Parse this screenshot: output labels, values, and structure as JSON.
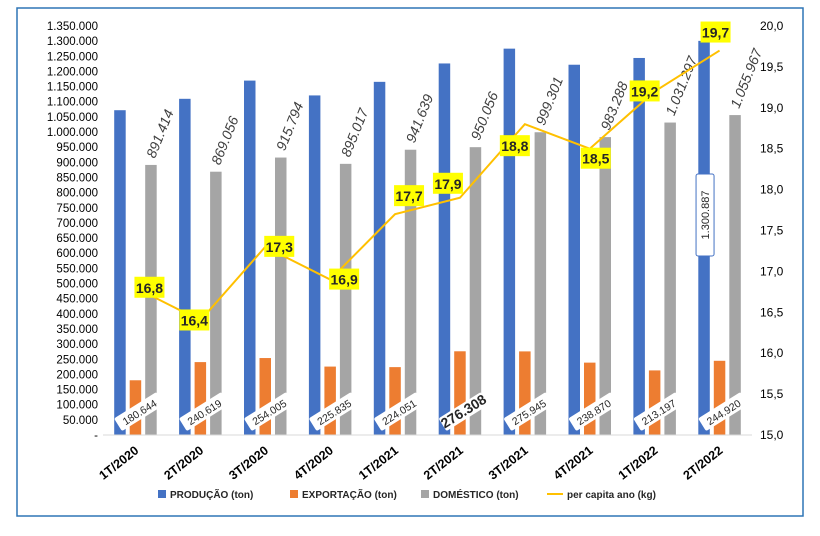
{
  "chart_data": {
    "type": "bar",
    "categories": [
      "1T/2020",
      "2T/2020",
      "3T/2020",
      "4T/2020",
      "1T/2021",
      "2T/2021",
      "3T/2021",
      "4T/2021",
      "1T/2022",
      "2T/2022"
    ],
    "series": [
      {
        "name": "PRODUÇÃO (ton)",
        "color": "#4472C4",
        "axis": "left",
        "values": [
          1072058,
          1109675,
          1169799,
          1120852,
          1165690,
          1226364,
          1275246,
          1222158,
          1244494,
          1300887
        ]
      },
      {
        "name": "EXPORTAÇÃO (ton)",
        "color": "#ED7D31",
        "axis": "left",
        "values": [
          180644,
          240619,
          254005,
          225835,
          224051,
          276308,
          275945,
          238870,
          213197,
          244920
        ]
      },
      {
        "name": "DOMÉSTICO (ton)",
        "color": "#A5A5A5",
        "axis": "left",
        "values": [
          891414,
          869056,
          915794,
          895017,
          941639,
          950056,
          999301,
          983288,
          1031297,
          1055967
        ]
      },
      {
        "name": "per capita ano (kg)",
        "color": "#FFC000",
        "axis": "right",
        "type": "line",
        "values": [
          16.8,
          16.4,
          17.3,
          16.9,
          17.7,
          17.9,
          18.8,
          18.5,
          19.2,
          19.7
        ]
      }
    ],
    "data_labels": {
      "producao": [
        "",
        "",
        "",
        "",
        "",
        "",
        "",
        "",
        "",
        "1.300.887"
      ],
      "exportacao": [
        "180.644",
        "240.619",
        "254.005",
        "225.835",
        "224.051",
        "276.308",
        "275.945",
        "238.870",
        "213.197",
        "244.920"
      ],
      "domestico": [
        "891.414",
        "869.056",
        "915.794",
        "895.017",
        "941.639",
        "950.056",
        "999.301",
        "983.288",
        "1.031.297",
        "1.055.967"
      ],
      "per_capita": [
        "16,8",
        "16,4",
        "17,3",
        "16,9",
        "17,7",
        "17,9",
        "18,8",
        "18,5",
        "19,2",
        "19,7"
      ]
    },
    "y_left": {
      "min": 0,
      "max": 1350000,
      "step": 50000,
      "tick_labels": [
        "-",
        "50.000",
        "100.000",
        "150.000",
        "200.000",
        "250.000",
        "300.000",
        "350.000",
        "400.000",
        "450.000",
        "500.000",
        "550.000",
        "600.000",
        "650.000",
        "700.000",
        "750.000",
        "800.000",
        "850.000",
        "900.000",
        "950.000",
        "1.000.000",
        "1.050.000",
        "1.100.000",
        "1.150.000",
        "1.200.000",
        "1.250.000",
        "1.300.000",
        "1.350.000"
      ]
    },
    "y_right": {
      "min": 15.0,
      "max": 20.0,
      "step": 0.5,
      "tick_labels": [
        "15,0",
        "15,5",
        "16,0",
        "16,5",
        "17,0",
        "17,5",
        "18,0",
        "18,5",
        "19,0",
        "19,5",
        "20,0"
      ]
    },
    "legend": {
      "position": "bottom",
      "entries": [
        "PRODUÇÃO (ton)",
        "EXPORTAÇÃO (ton)",
        "DOMÉSTICO (ton)",
        "per capita ano (kg)"
      ]
    },
    "title": "",
    "xlabel": "",
    "ylabel": "",
    "grid": false
  }
}
